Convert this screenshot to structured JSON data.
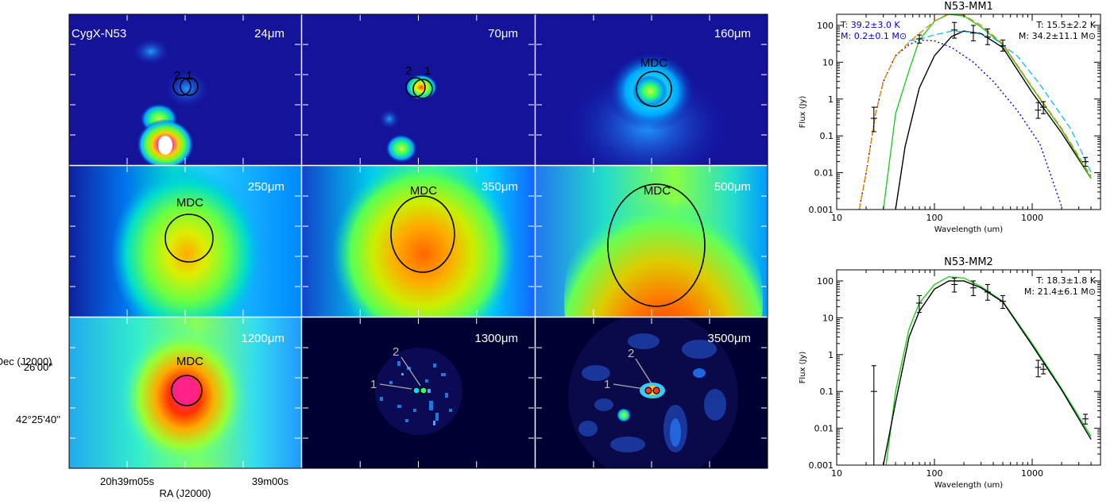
{
  "figure": {
    "source_label": "CygX-N53",
    "panels": [
      {
        "band": "24μm",
        "circle_labels": [
          "2",
          "1"
        ]
      },
      {
        "band": "70μm",
        "circle_labels": [
          "2",
          "1"
        ]
      },
      {
        "band": "160μm",
        "circle_label": "MDC"
      },
      {
        "band": "250μm",
        "circle_label": "MDC"
      },
      {
        "band": "350μm",
        "circle_label": "MDC"
      },
      {
        "band": "500μm",
        "circle_label": "MDC"
      },
      {
        "band": "1200μm",
        "circle_label": "MDC"
      },
      {
        "band": "1300μm",
        "pointer_labels": [
          "1",
          "2"
        ]
      },
      {
        "band": "3500μm",
        "pointer_labels": [
          "1",
          "2"
        ]
      }
    ],
    "axes": {
      "dec_label": "Dec (J2000)",
      "ra_label": "RA (J2000)",
      "dec_ticks": [
        "26'00''",
        "42°25'40''"
      ],
      "ra_ticks": [
        "20h39m05s",
        "39m00s"
      ]
    }
  },
  "chart_data": [
    {
      "type": "line",
      "title": "N53-MM1",
      "xlabel": "Wavelength (um)",
      "ylabel": "Flux (Jy)",
      "xscale": "log",
      "yscale": "log",
      "xlim": [
        10,
        5000
      ],
      "ylim": [
        0.001,
        200
      ],
      "xticks": [
        "10",
        "100",
        "1000"
      ],
      "yticks": [
        "0.001",
        "0.01",
        "0.1",
        "1",
        "10",
        "100"
      ],
      "annotations": [
        {
          "text": "T: 39.2±3.0 K",
          "color": "#0000cc"
        },
        {
          "text": "M: 0.2±0.1 M⊙",
          "color": "#0000cc"
        },
        {
          "text": "T: 15.5±2.2 K",
          "color": "#000000"
        },
        {
          "text": "M: 34.2±11.1 M⊙",
          "color": "#000000"
        }
      ],
      "points": [
        {
          "x": 24,
          "y": 0.3,
          "ylo": 0.13,
          "yhi": 0.6
        },
        {
          "x": 70,
          "y": 43,
          "ylo": 33,
          "yhi": 55
        },
        {
          "x": 160,
          "y": 75,
          "ylo": 45,
          "yhi": 120
        },
        {
          "x": 250,
          "y": 62,
          "ylo": 38,
          "yhi": 100
        },
        {
          "x": 350,
          "y": 48,
          "ylo": 30,
          "yhi": 80
        },
        {
          "x": 500,
          "y": 28,
          "ylo": 20,
          "yhi": 40
        },
        {
          "x": 1150,
          "y": 0.5,
          "ylo": 0.3,
          "yhi": 0.8
        },
        {
          "x": 1300,
          "y": 0.6,
          "ylo": 0.4,
          "yhi": 0.85
        },
        {
          "x": 3500,
          "y": 0.02,
          "ylo": 0.015,
          "yhi": 0.026
        }
      ],
      "series": [
        {
          "color": "#0000ee",
          "dash": "2,3",
          "x": [
            17,
            20,
            25,
            30,
            40,
            55,
            70,
            100,
            150,
            250,
            400,
            700,
            1200,
            2000
          ],
          "y": [
            0.001,
            0.01,
            0.4,
            3,
            15,
            30,
            40,
            38,
            25,
            10,
            3,
            0.5,
            0.06,
            0.0012
          ]
        },
        {
          "color": "#000000",
          "dash": "",
          "x": [
            40,
            50,
            70,
            100,
            150,
            200,
            300,
            500,
            1000,
            2000,
            4000
          ],
          "y": [
            0.001,
            0.05,
            2,
            15,
            50,
            70,
            60,
            25,
            1.5,
            0.12,
            0.007
          ]
        },
        {
          "color": "#22cc22",
          "dash": "",
          "x": [
            30,
            40,
            55,
            70,
            100,
            140,
            200,
            300,
            500,
            1000,
            2000,
            4000
          ],
          "y": [
            0.001,
            0.4,
            6,
            40,
            130,
            200,
            180,
            90,
            30,
            2,
            0.15,
            0.007
          ]
        },
        {
          "color": "#ee8800",
          "dash": "8,4",
          "x": [
            17,
            20,
            25,
            30,
            40,
            55,
            70,
            100,
            140,
            200,
            300,
            500,
            1000,
            2000,
            4000
          ],
          "y": [
            0.001,
            0.01,
            0.4,
            3,
            15,
            35,
            60,
            130,
            210,
            190,
            100,
            32,
            2.1,
            0.16,
            0.008
          ]
        },
        {
          "color": "#22bbee",
          "dash": "8,4",
          "x": [
            55,
            70,
            100,
            150,
            250,
            400,
            700,
            1200,
            2500,
            4000
          ],
          "y": [
            38,
            42,
            55,
            70,
            65,
            45,
            15,
            2.5,
            0.15,
            0.01
          ]
        }
      ]
    },
    {
      "type": "line",
      "title": "N53-MM2",
      "xlabel": "Wavelength (um)",
      "ylabel": "Flux (Jy)",
      "xscale": "log",
      "yscale": "log",
      "xlim": [
        10,
        5000
      ],
      "ylim": [
        0.001,
        200
      ],
      "xticks": [
        "10",
        "100",
        "1000"
      ],
      "yticks": [
        "0.001",
        "0.01",
        "0.1",
        "1",
        "10",
        "100"
      ],
      "annotations": [
        {
          "text": "T: 18.3±1.8 K",
          "color": "#000000"
        },
        {
          "text": "M: 21.4±6.1 M⊙",
          "color": "#000000"
        }
      ],
      "points": [
        {
          "x": 24,
          "y": 0.1,
          "ylo": 0.001,
          "yhi": 0.5
        },
        {
          "x": 70,
          "y": 25,
          "ylo": 14,
          "yhi": 40
        },
        {
          "x": 160,
          "y": 80,
          "ylo": 50,
          "yhi": 120
        },
        {
          "x": 250,
          "y": 65,
          "ylo": 40,
          "yhi": 100
        },
        {
          "x": 350,
          "y": 50,
          "ylo": 30,
          "yhi": 80
        },
        {
          "x": 500,
          "y": 28,
          "ylo": 18,
          "yhi": 40
        },
        {
          "x": 1150,
          "y": 0.45,
          "ylo": 0.25,
          "yhi": 0.7
        },
        {
          "x": 1300,
          "y": 0.4,
          "ylo": 0.3,
          "yhi": 0.55
        },
        {
          "x": 3500,
          "y": 0.018,
          "ylo": 0.013,
          "yhi": 0.024
        }
      ],
      "series": [
        {
          "color": "#22cc22",
          "dash": "",
          "x": [
            32,
            40,
            55,
            70,
            100,
            140,
            200,
            300,
            500,
            1000,
            2000,
            4000
          ],
          "y": [
            0.001,
            0.1,
            5,
            25,
            80,
            130,
            120,
            70,
            28,
            2,
            0.12,
            0.006
          ]
        },
        {
          "color": "#000000",
          "dash": "",
          "x": [
            30,
            40,
            55,
            70,
            100,
            140,
            200,
            300,
            500,
            1000,
            2000,
            4000
          ],
          "y": [
            0.001,
            0.05,
            3,
            15,
            60,
            100,
            100,
            65,
            27,
            1.8,
            0.11,
            0.005
          ]
        }
      ]
    }
  ]
}
